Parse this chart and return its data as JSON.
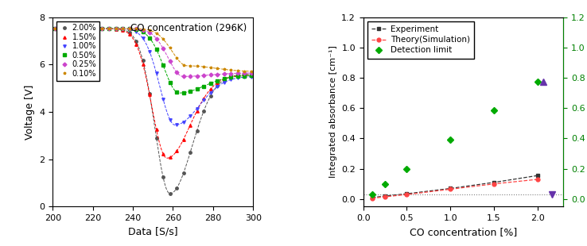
{
  "left": {
    "title": "CO concentration (296K)",
    "xlabel": "Data [S/s]",
    "ylabel": "Voltage [V]",
    "xlim": [
      200,
      300
    ],
    "ylim": [
      0,
      8
    ],
    "yticks": [
      0,
      2,
      4,
      6,
      8
    ],
    "xticks": [
      200,
      220,
      240,
      260,
      280,
      300
    ],
    "curves": [
      {
        "label": "2.00%",
        "color": "#555555",
        "marker": "o",
        "peak_x": 258.5,
        "min_v": 0.55,
        "start_v": 7.53,
        "end_v": 5.6,
        "wl": 7.5,
        "wr": 11.0
      },
      {
        "label": "1.50%",
        "color": "#ff0000",
        "marker": "^",
        "peak_x": 257.0,
        "min_v": 2.05,
        "start_v": 7.52,
        "end_v": 5.55,
        "wl": 7.5,
        "wr": 11.5
      },
      {
        "label": "1.00%",
        "color": "#4444ff",
        "marker": "v",
        "peak_x": 261.0,
        "min_v": 3.45,
        "start_v": 7.52,
        "end_v": 5.5,
        "wl": 7.5,
        "wr": 12.0
      },
      {
        "label": "0.50%",
        "color": "#00aa00",
        "marker": "s",
        "peak_x": 263.0,
        "min_v": 4.8,
        "start_v": 7.52,
        "end_v": 5.55,
        "wl": 7.5,
        "wr": 12.5
      },
      {
        "label": "0.25%",
        "color": "#cc44cc",
        "marker": "D",
        "peak_x": 265.0,
        "min_v": 5.5,
        "start_v": 7.52,
        "end_v": 5.65,
        "wl": 7.5,
        "wr": 13.0
      },
      {
        "label": "0.10%",
        "color": "#cc8800",
        "marker": "*",
        "peak_x": 267.0,
        "min_v": 5.95,
        "start_v": 7.52,
        "end_v": 5.7,
        "wl": 7.5,
        "wr": 13.5
      }
    ]
  },
  "right": {
    "xlabel": "CO concentration [%]",
    "ylabel_left": "Integrated absorbance [cm⁻¹]",
    "ylabel_right": "Detection limit",
    "xlim": [
      0.0,
      2.3
    ],
    "ylim_left": [
      -0.05,
      1.2
    ],
    "ylim_right": [
      -0.05,
      1.2
    ],
    "yticks_left": [
      0.0,
      0.2,
      0.4,
      0.6,
      0.8,
      1.0,
      1.2
    ],
    "yticks_right": [
      0.0,
      0.2,
      0.4,
      0.6,
      0.8,
      1.0,
      1.2
    ],
    "xticks": [
      0.0,
      0.5,
      1.0,
      1.5,
      2.0
    ],
    "experiment_x": [
      0.1,
      0.25,
      0.5,
      1.0,
      1.5,
      2.0
    ],
    "experiment_y": [
      0.01,
      0.02,
      0.035,
      0.07,
      0.11,
      0.155
    ],
    "theory_x": [
      0.1,
      0.25,
      0.5,
      1.0,
      1.5,
      2.0
    ],
    "theory_y": [
      0.005,
      0.015,
      0.03,
      0.065,
      0.1,
      0.13
    ],
    "detection_x": [
      0.1,
      0.25,
      0.5,
      1.0,
      1.5,
      2.0
    ],
    "detection_y": [
      0.03,
      0.1,
      0.2,
      0.39,
      0.585,
      0.775
    ],
    "triangle_up_x": [
      2.07
    ],
    "triangle_up_y": [
      0.775
    ],
    "triangle_down_x": [
      2.17
    ],
    "triangle_down_y": [
      0.03
    ],
    "dotted_y": 0.03,
    "exp_color": "#333333",
    "theory_color": "#ff4444",
    "detect_color": "#00aa00",
    "triangle_color": "#6633aa"
  }
}
